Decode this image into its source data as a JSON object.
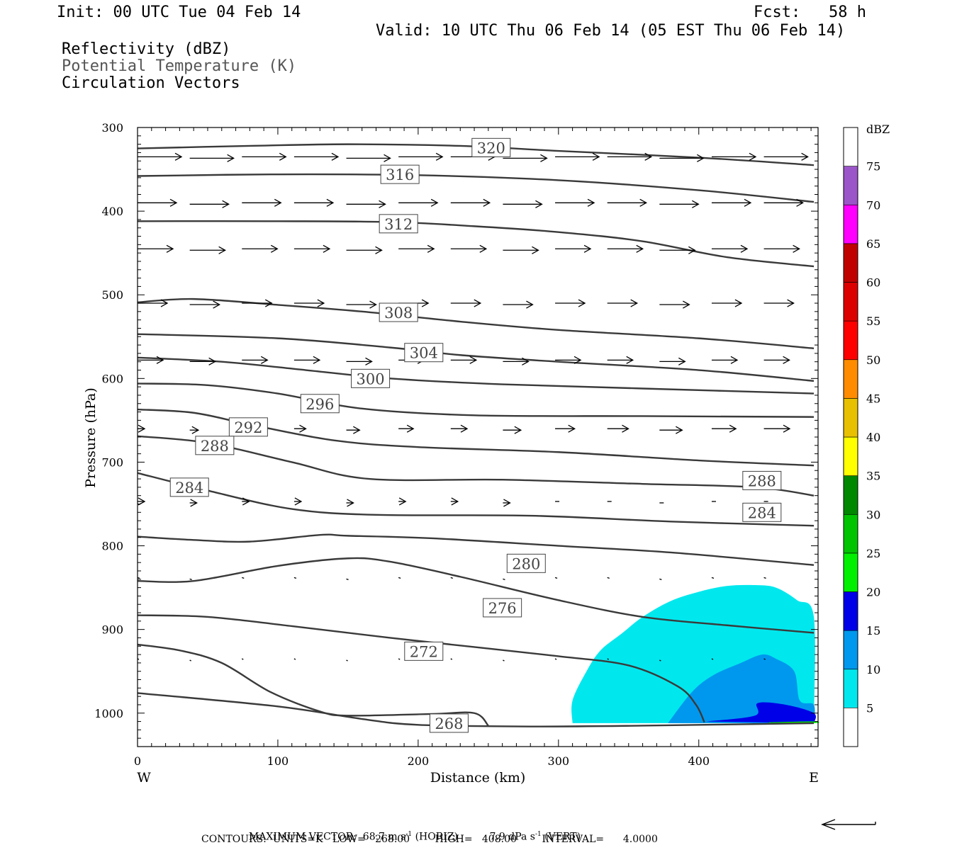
{
  "header": {
    "init": "Init: 00 UTC Tue 04 Feb 14",
    "fcst": "Fcst:   58 h",
    "valid": "Valid: 10 UTC Thu 06 Feb 14 (05 EST Thu 06 Feb 14)",
    "fields": [
      "Reflectivity (dBZ)",
      "Potential Temperature (K)",
      "Circulation Vectors"
    ]
  },
  "footer": {
    "max_vector_label": "MAXIMUM VECTOR:",
    "max_horiz": "68.7 m s",
    "horiz_tag": "(HORIZ)",
    "max_vert": "7.9 dPa s",
    "vert_tag": "(VERT)",
    "exp": "-1",
    "contours": "CONTOURS:  UNITS=K   LOW=   268.00        HIGH=   408.00        INTERVAL=      4.0000"
  },
  "chart_data": {
    "type": "cross-section",
    "xlabel": "Distance (km)",
    "ylabel": "Pressure (hPa)",
    "x_end_labels": {
      "left": "W",
      "right": "E"
    },
    "xlim": [
      0,
      485
    ],
    "ylim_hPa": [
      300,
      1040
    ],
    "x_ticks": [
      0,
      100,
      200,
      300,
      400
    ],
    "y_ticks": [
      300,
      400,
      500,
      600,
      700,
      800,
      900,
      1000
    ],
    "colorbar": {
      "title": "dBZ",
      "levels": [
        5,
        10,
        15,
        20,
        25,
        30,
        35,
        40,
        45,
        50,
        55,
        60,
        65,
        70,
        75
      ],
      "colors": [
        "#00e8ee",
        "#0098ee",
        "#0000e8",
        "#00f000",
        "#00c400",
        "#008800",
        "#ffff00",
        "#e8c000",
        "#ff8c00",
        "#ff0000",
        "#dd0000",
        "#c00000",
        "#ff00ff",
        "#9b55c8",
        "#ffffff"
      ]
    },
    "reflectivity": [
      {
        "dbz": 5,
        "points": [
          [
            310,
            1012
          ],
          [
            310,
            985
          ],
          [
            320,
            950
          ],
          [
            330,
            925
          ],
          [
            345,
            905
          ],
          [
            360,
            885
          ],
          [
            380,
            866
          ],
          [
            400,
            855
          ],
          [
            420,
            848
          ],
          [
            440,
            847
          ],
          [
            455,
            850
          ],
          [
            470,
            865
          ],
          [
            482,
            885
          ],
          [
            482,
            1012
          ]
        ]
      },
      {
        "dbz": 10,
        "points": [
          [
            378,
            1012
          ],
          [
            395,
            975
          ],
          [
            410,
            955
          ],
          [
            430,
            940
          ],
          [
            445,
            930
          ],
          [
            455,
            935
          ],
          [
            468,
            950
          ],
          [
            472,
            985
          ],
          [
            482,
            990
          ],
          [
            482,
            1012
          ]
        ]
      },
      {
        "dbz": 15,
        "points": [
          [
            405,
            1010
          ],
          [
            440,
            1003
          ],
          [
            442,
            988
          ],
          [
            462,
            990
          ],
          [
            482,
            1000
          ],
          [
            482,
            1012
          ]
        ]
      },
      {
        "dbz": 20,
        "points": [
          [
            450,
            1011
          ],
          [
            482,
            1010
          ],
          [
            482,
            1012
          ],
          [
            450,
            1012
          ]
        ]
      }
    ],
    "theta_contours": [
      {
        "value": 320,
        "label_at": [
          252,
          324
        ],
        "points": [
          [
            0,
            325
          ],
          [
            80,
            322
          ],
          [
            150,
            320
          ],
          [
            230,
            322
          ],
          [
            300,
            328
          ],
          [
            400,
            336
          ],
          [
            482,
            345
          ]
        ]
      },
      {
        "value": 316,
        "label_at": [
          187,
          356
        ],
        "points": [
          [
            0,
            358
          ],
          [
            100,
            356
          ],
          [
            200,
            357
          ],
          [
            300,
            363
          ],
          [
            400,
            375
          ],
          [
            482,
            389
          ]
        ]
      },
      {
        "value": 312,
        "label_at": [
          186,
          415
        ],
        "points": [
          [
            0,
            412
          ],
          [
            100,
            412
          ],
          [
            180,
            413
          ],
          [
            240,
            418
          ],
          [
            300,
            425
          ],
          [
            360,
            436
          ],
          [
            420,
            455
          ],
          [
            482,
            466
          ]
        ]
      },
      {
        "value": 308,
        "label_at": [
          186,
          521
        ],
        "points": [
          [
            0,
            509
          ],
          [
            40,
            505
          ],
          [
            100,
            512
          ],
          [
            160,
            520
          ],
          [
            230,
            532
          ],
          [
            300,
            542
          ],
          [
            400,
            552
          ],
          [
            482,
            564
          ]
        ]
      },
      {
        "value": 304,
        "label_at": [
          204,
          569
        ],
        "points": [
          [
            0,
            547
          ],
          [
            100,
            552
          ],
          [
            180,
            563
          ],
          [
            230,
            572
          ],
          [
            300,
            580
          ],
          [
            400,
            590
          ],
          [
            482,
            603
          ]
        ]
      },
      {
        "value": 300,
        "label_at": [
          166,
          600
        ],
        "points": [
          [
            0,
            575
          ],
          [
            60,
            580
          ],
          [
            120,
            590
          ],
          [
            180,
            600
          ],
          [
            260,
            607
          ],
          [
            360,
            612
          ],
          [
            482,
            618
          ]
        ]
      },
      {
        "value": 296,
        "label_at": [
          130,
          630
        ],
        "points": [
          [
            0,
            606
          ],
          [
            50,
            608
          ],
          [
            100,
            618
          ],
          [
            160,
            636
          ],
          [
            240,
            644
          ],
          [
            360,
            645
          ],
          [
            482,
            646
          ]
        ]
      },
      {
        "value": 292,
        "label_at": [
          79,
          658
        ],
        "points": [
          [
            0,
            637
          ],
          [
            40,
            641
          ],
          [
            80,
            655
          ],
          [
            140,
            674
          ],
          [
            200,
            682
          ],
          [
            300,
            688
          ],
          [
            400,
            698
          ],
          [
            482,
            704
          ]
        ]
      },
      {
        "value": 288,
        "label_at": [
          55,
          680
        ],
        "points": [
          [
            0,
            669
          ],
          [
            50,
            677
          ],
          [
            110,
            700
          ],
          [
            165,
            720
          ],
          [
            260,
            721
          ],
          [
            360,
            726
          ],
          [
            440,
            730
          ],
          [
            482,
            740
          ]
        ]
      },
      {
        "value": 284,
        "label_at": [
          37,
          730
        ],
        "points": [
          [
            0,
            713
          ],
          [
            50,
            734
          ],
          [
            110,
            756
          ],
          [
            170,
            763
          ],
          [
            280,
            764
          ],
          [
            380,
            771
          ],
          [
            482,
            776
          ]
        ]
      },
      {
        "value": 280,
        "label_at": [
          277,
          821
        ],
        "points": [
          [
            0,
            789
          ],
          [
            40,
            793
          ],
          [
            80,
            795
          ],
          [
            130,
            787
          ],
          [
            150,
            788
          ],
          [
            210,
            791
          ],
          [
            300,
            800
          ],
          [
            380,
            808
          ],
          [
            482,
            823
          ]
        ]
      },
      {
        "value": 276,
        "label_at": [
          260,
          874
        ],
        "points": [
          [
            0,
            842
          ],
          [
            40,
            842
          ],
          [
            100,
            824
          ],
          [
            150,
            815
          ],
          [
            180,
            819
          ],
          [
            230,
            837
          ],
          [
            300,
            865
          ],
          [
            360,
            885
          ],
          [
            420,
            895
          ],
          [
            482,
            904
          ]
        ]
      },
      {
        "value": 272,
        "label_at": [
          204,
          926
        ],
        "points": [
          [
            0,
            883
          ],
          [
            50,
            885
          ],
          [
            110,
            896
          ],
          [
            180,
            910
          ],
          [
            240,
            921
          ],
          [
            300,
            932
          ],
          [
            350,
            943
          ],
          [
            385,
            968
          ],
          [
            398,
            990
          ],
          [
            404,
            1011
          ]
        ]
      },
      {
        "value": 268,
        "label_at": [
          222,
          1012
        ],
        "points": [
          [
            0,
            918
          ],
          [
            30,
            925
          ],
          [
            60,
            940
          ],
          [
            95,
            975
          ],
          [
            130,
            998
          ],
          [
            150,
            1003
          ],
          [
            210,
            1001
          ],
          [
            240,
            1000
          ],
          [
            250,
            1015
          ]
        ]
      },
      {
        "value": 268,
        "label_at": null,
        "points": [
          [
            0,
            976
          ],
          [
            100,
            992
          ],
          [
            160,
            1007
          ],
          [
            200,
            1014
          ],
          [
            280,
            1016
          ],
          [
            360,
            1015
          ],
          [
            482,
            1012
          ]
        ]
      }
    ],
    "vector_row_pressures": [
      335,
      390,
      445,
      510,
      578,
      660,
      747,
      838,
      935
    ]
  }
}
